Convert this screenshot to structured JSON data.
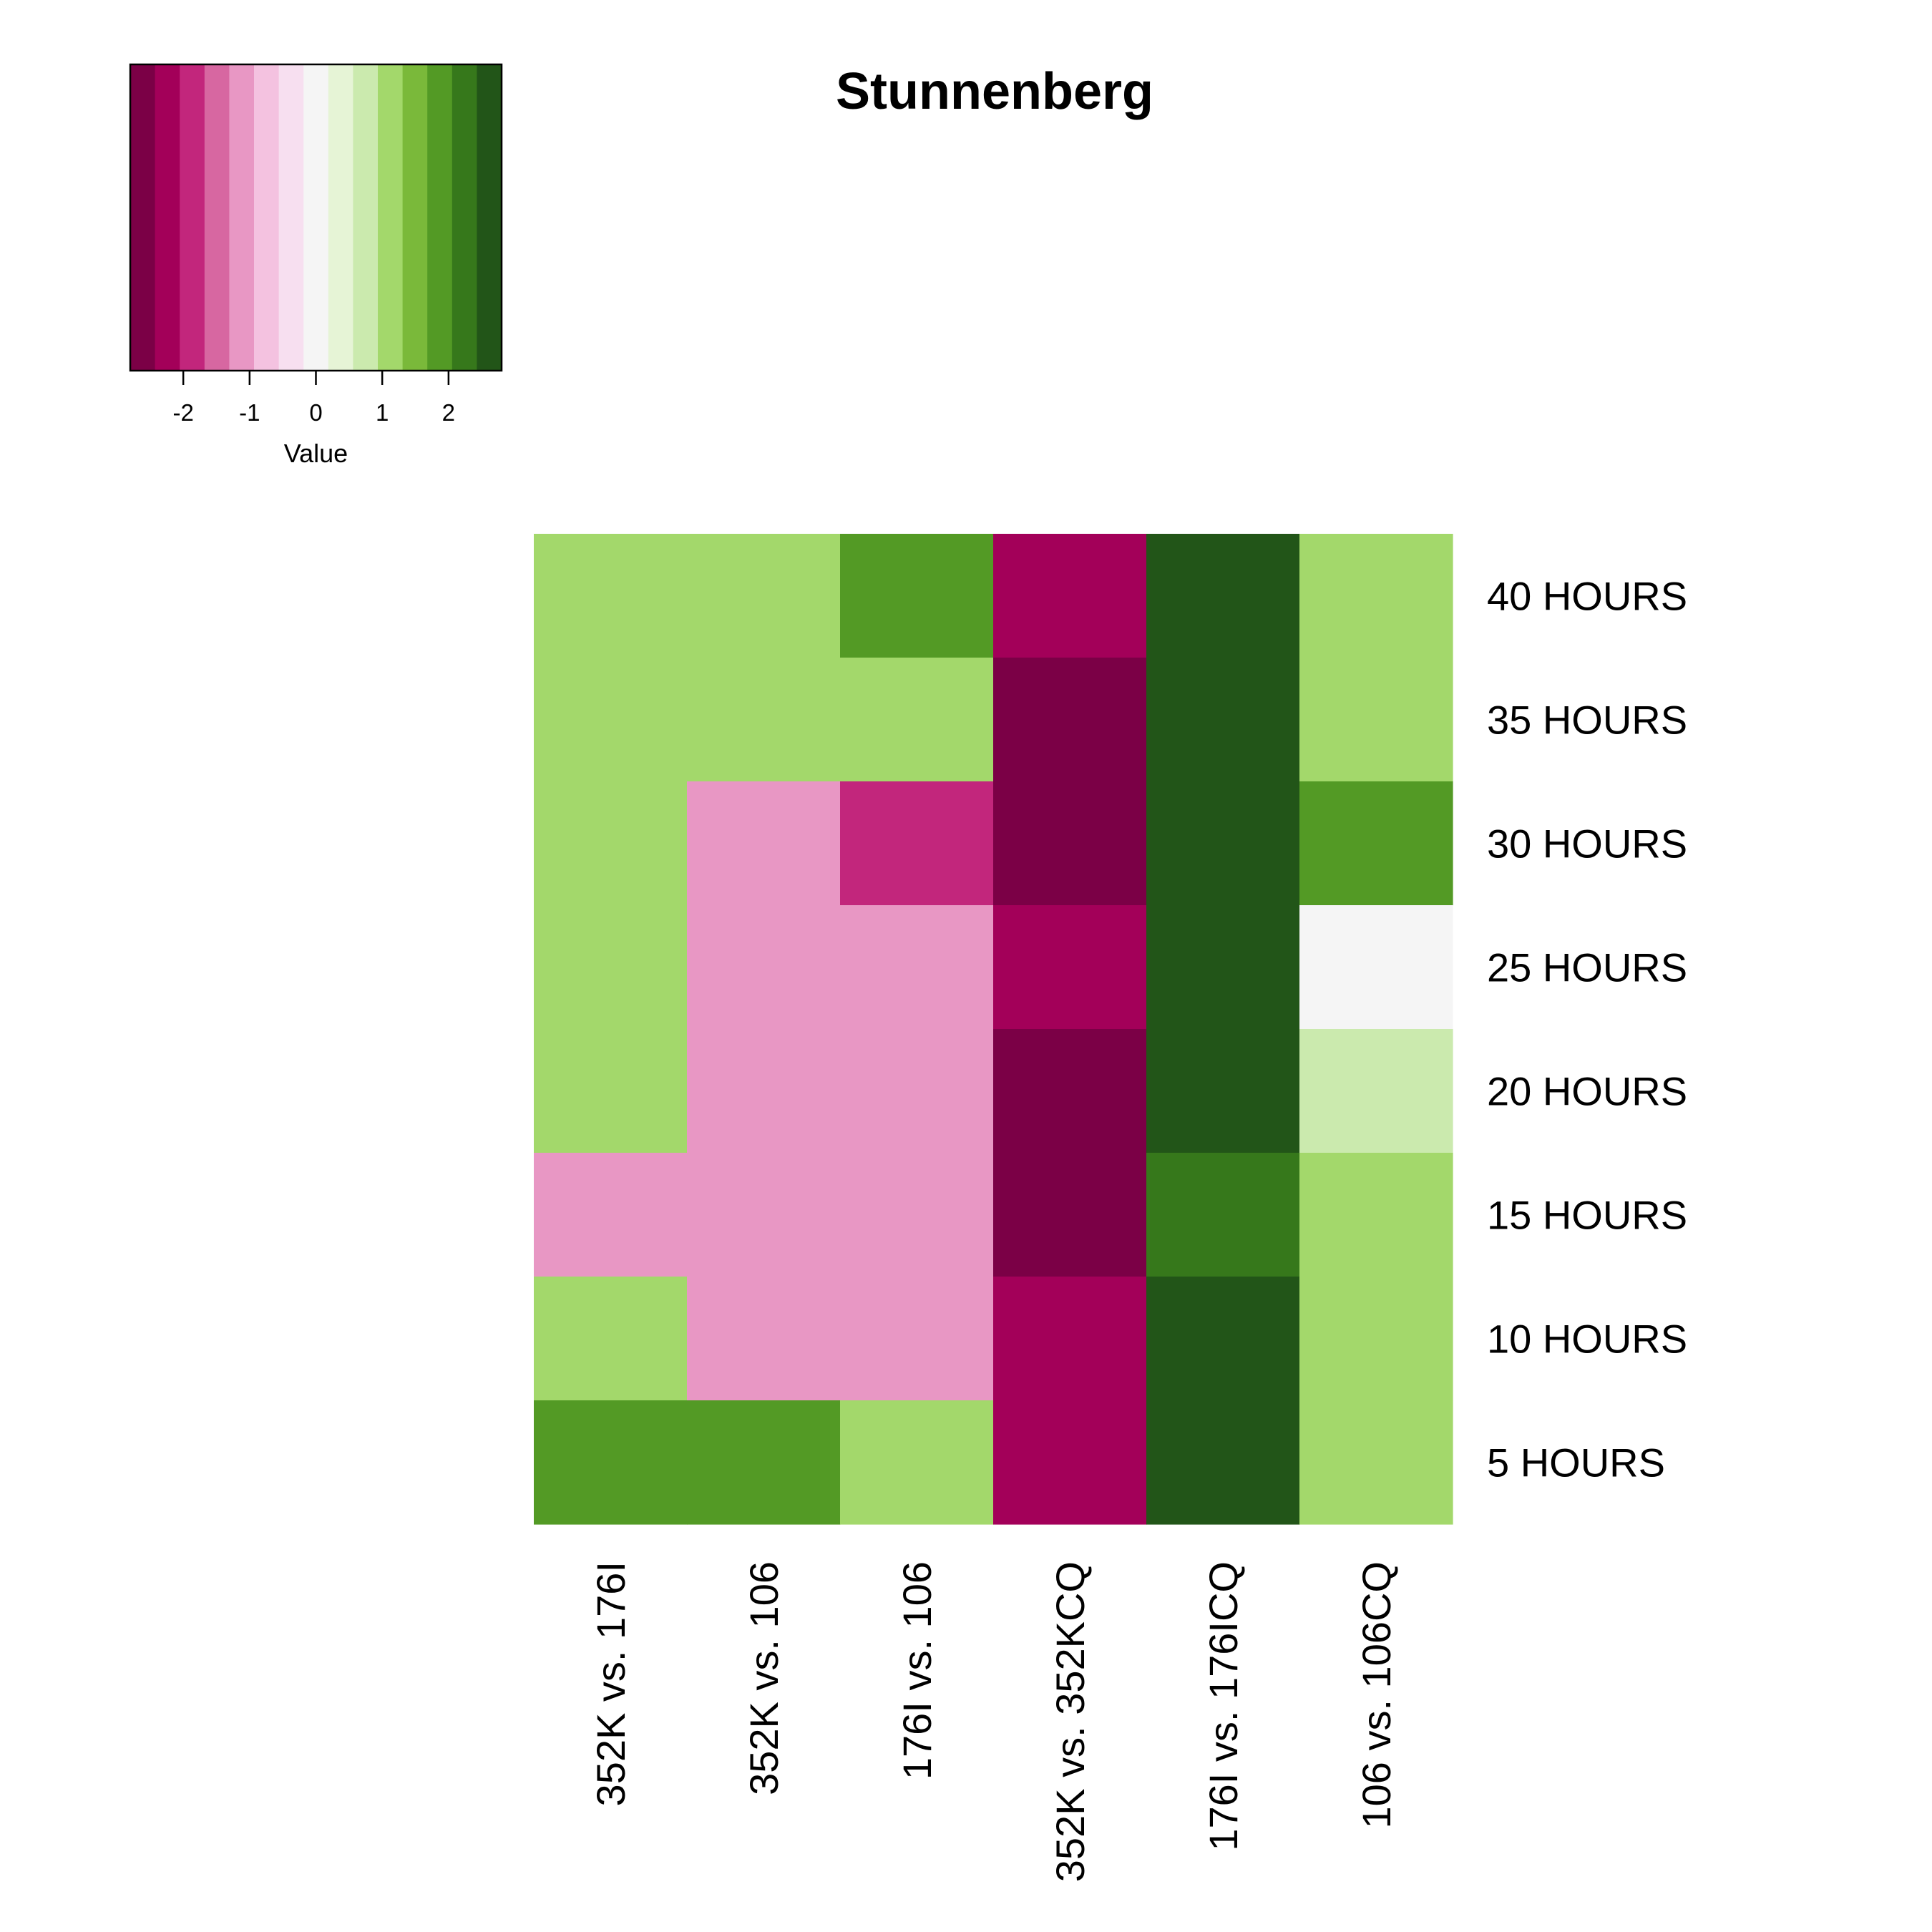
{
  "chart_data": {
    "type": "heatmap",
    "title": "Stunnenberg",
    "columns": [
      "352K vs. 176I",
      "352K vs. 106",
      "176I vs. 106",
      "352K vs. 352KCQ",
      "176I vs. 176ICQ",
      "106 vs. 106CQ"
    ],
    "rows": [
      "40 HOURS",
      "35 HOURS",
      "30 HOURS",
      "25 HOURS",
      "20 HOURS",
      "15 HOURS",
      "10 HOURS",
      "5 HOURS"
    ],
    "values": [
      [
        1.3,
        1.3,
        1.7,
        -2.3,
        2.7,
        1.3
      ],
      [
        1.3,
        1.3,
        1.3,
        -2.7,
        2.7,
        1.3
      ],
      [
        1.3,
        -1.3,
        -1.7,
        -2.7,
        2.7,
        1.7
      ],
      [
        1.3,
        -1.3,
        -1.3,
        -2.3,
        2.7,
        0.0
      ],
      [
        1.3,
        -1.3,
        -1.3,
        -2.7,
        2.7,
        0.9
      ],
      [
        -1.3,
        -1.3,
        -1.3,
        -2.7,
        2.2,
        1.3
      ],
      [
        1.3,
        -1.3,
        -1.3,
        -2.3,
        2.7,
        1.3
      ],
      [
        1.7,
        1.7,
        1.3,
        -2.3,
        2.7,
        1.3
      ]
    ],
    "color_key": {
      "label": "Value",
      "range": [
        -2.8,
        2.8
      ],
      "ticks": [
        -2,
        -1,
        0,
        1,
        2
      ],
      "colors": [
        "#7b0046",
        "#a30059",
        "#c2267c",
        "#d767a1",
        "#e897c4",
        "#f4c2e0",
        "#f7dff0",
        "#f5f5f5",
        "#e6f4d6",
        "#cbeaae",
        "#a3d86b",
        "#7ab93a",
        "#539a25",
        "#36781b",
        "#225518"
      ]
    }
  }
}
